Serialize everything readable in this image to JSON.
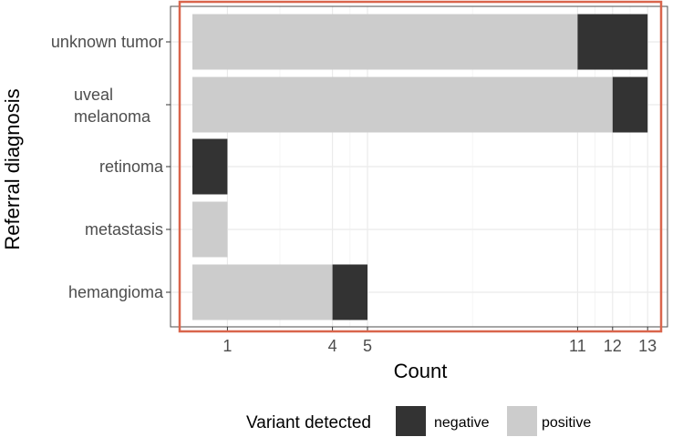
{
  "chart_data": {
    "type": "bar",
    "orientation": "horizontal",
    "stacked": true,
    "categories": [
      "unknown tumor",
      "uveal melanoma",
      "retinoma",
      "metastasis",
      "hemangioma"
    ],
    "category_label_lines": [
      [
        "unknown tumor"
      ],
      [
        "uveal",
        "melanoma"
      ],
      [
        "retinoma"
      ],
      [
        "metastasis"
      ],
      [
        "hemangioma"
      ]
    ],
    "series": [
      {
        "name": "positive",
        "values": [
          11,
          12,
          0,
          1,
          4
        ],
        "color": "#cccccc"
      },
      {
        "name": "negative",
        "values": [
          2,
          1,
          1,
          0,
          1
        ],
        "color": "#333333"
      }
    ],
    "x_ticks": [
      1,
      4,
      5,
      11,
      12,
      13
    ],
    "x_tick_labels": [
      "1",
      "4",
      "5",
      "11",
      "12",
      "13"
    ],
    "xlim": [
      0,
      13
    ],
    "xlabel": "Count",
    "ylabel": "Referral diagnosis",
    "legend_title": "Variant detected",
    "legend_position": "bottom",
    "grid": true,
    "highlight_box_color": "#d9654c"
  }
}
